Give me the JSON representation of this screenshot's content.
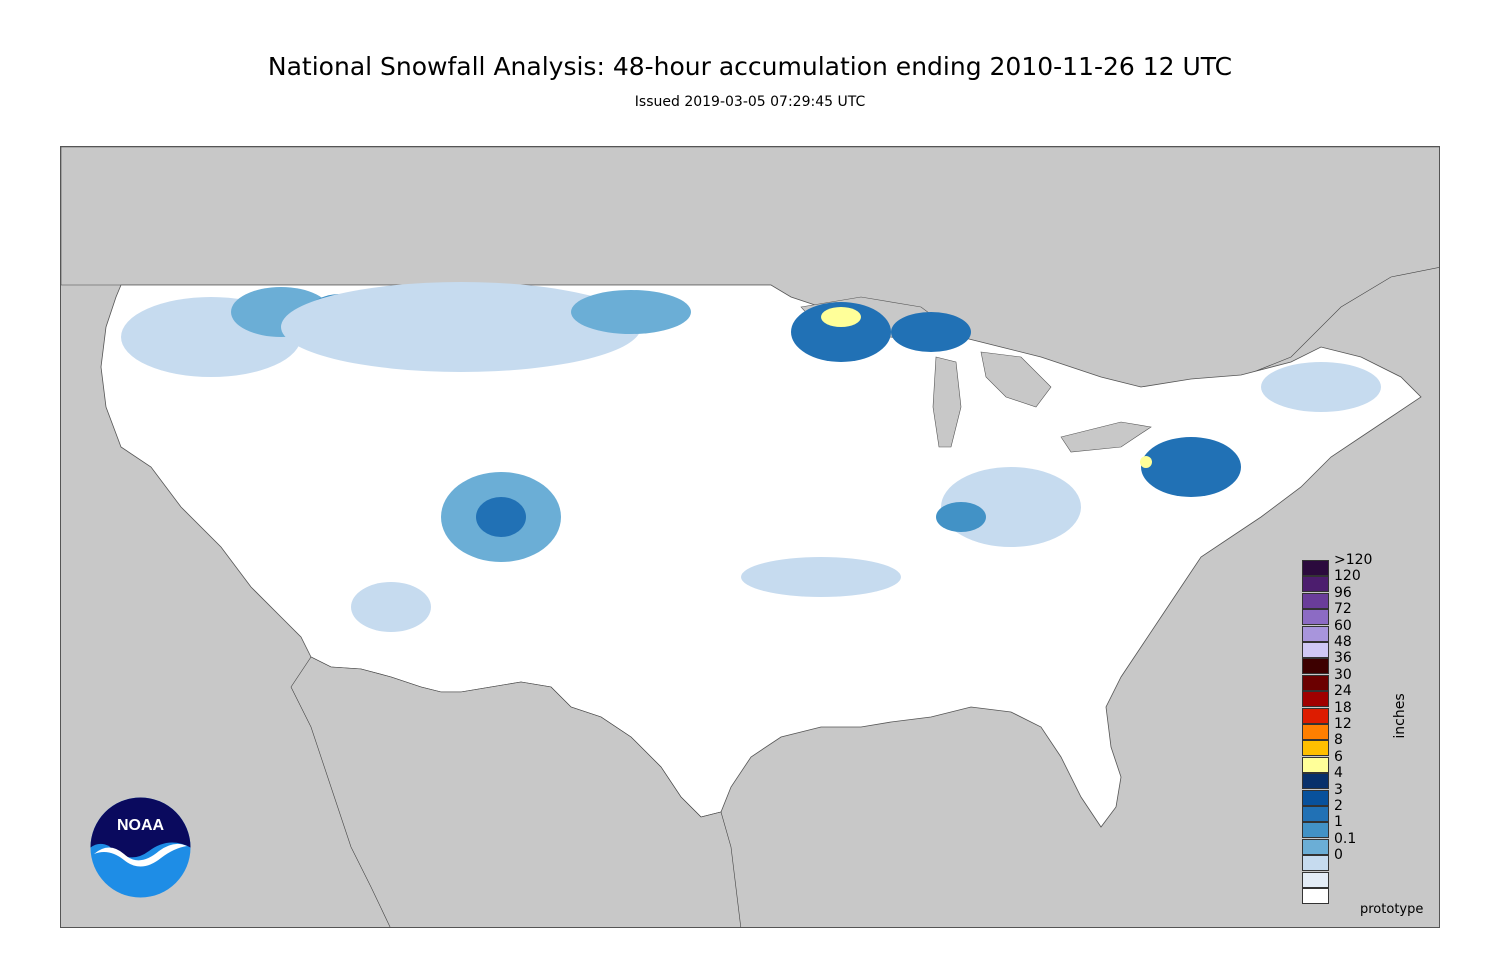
{
  "header": {
    "title": "National Snowfall Analysis: 48-hour accumulation ending 2010-11-26 12 UTC",
    "subtitle": "Issued 2019-03-05 07:29:45 UTC"
  },
  "map": {
    "land_color": "#ffffff",
    "offmap_color": "#c8c8c8",
    "water_color": "#c8c8c8",
    "border_color": "#555555"
  },
  "legend": {
    "units": "inches",
    "entries": [
      {
        "label": ">120",
        "color": "#2b0a3d"
      },
      {
        "label": "120",
        "color": "#4c1d6e"
      },
      {
        "label": "96",
        "color": "#6a3d9a"
      },
      {
        "label": "72",
        "color": "#8c6bc4"
      },
      {
        "label": "60",
        "color": "#a895dc"
      },
      {
        "label": "48",
        "color": "#cfc8f5"
      },
      {
        "label": "36",
        "color": "#3d0000"
      },
      {
        "label": "30",
        "color": "#6b0000"
      },
      {
        "label": "24",
        "color": "#a00000"
      },
      {
        "label": "18",
        "color": "#dd1c00"
      },
      {
        "label": "12",
        "color": "#ff7f00"
      },
      {
        "label": "8",
        "color": "#ffbf00"
      },
      {
        "label": "6",
        "color": "#ffff99"
      },
      {
        "label": "4",
        "color": "#08306b"
      },
      {
        "label": "3",
        "color": "#08519c"
      },
      {
        "label": "2",
        "color": "#2171b5"
      },
      {
        "label": "1",
        "color": "#4292c6"
      },
      {
        "label": "0.1",
        "color": "#6baed6"
      },
      {
        "label": "0",
        "color": "#c6dbef"
      },
      {
        "label": "",
        "color": "#e3ecf6"
      },
      {
        "label": "",
        "color": "#ffffff"
      }
    ]
  },
  "footer": {
    "note": "prototype"
  },
  "logo": {
    "text": "NOAA"
  }
}
